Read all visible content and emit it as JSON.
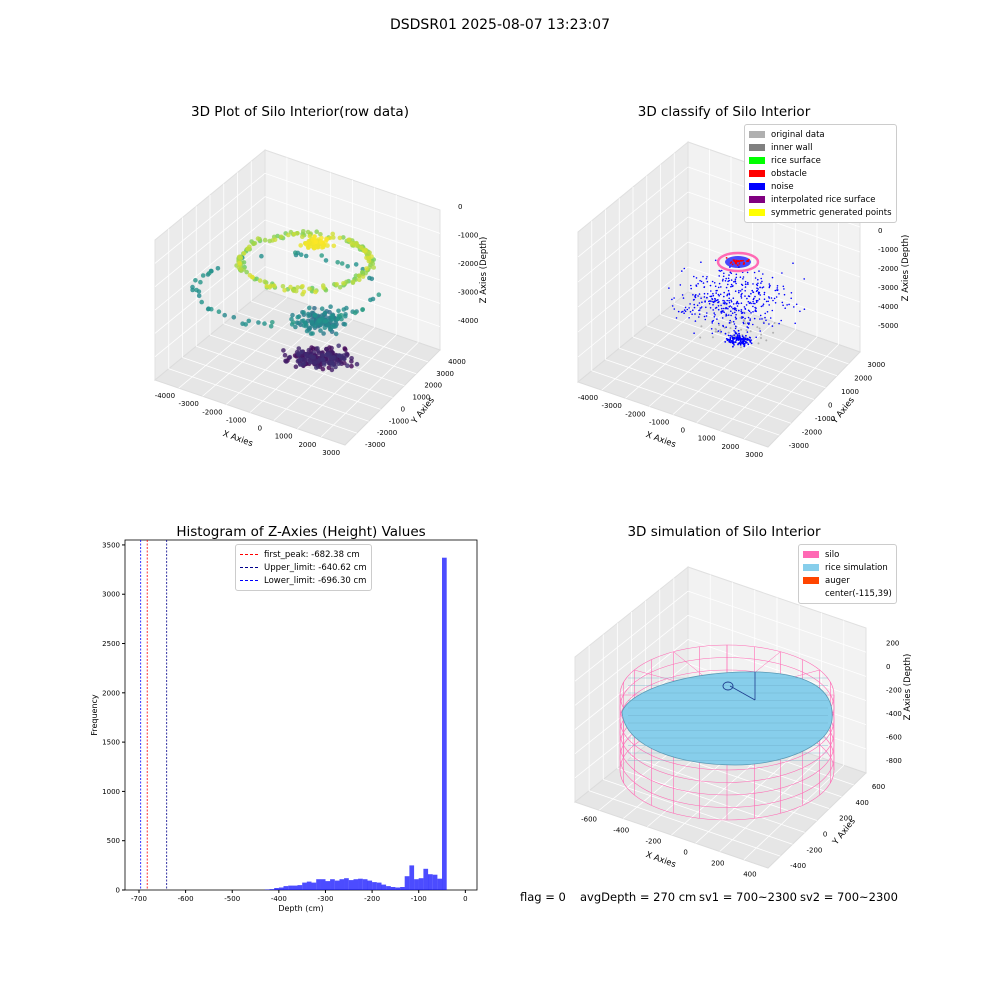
{
  "figure_title": "DSDSR01 2025-08-07 13:23:07",
  "footer": {
    "flag": "flag = 0",
    "avg_depth": "avgDepth = 270 cm",
    "sv1": "sv1 = 700~2300",
    "sv2": "sv2 = 700~2300"
  },
  "colors": {
    "original_data": "#b0b0b0",
    "inner_wall": "#808080",
    "rice_surface": "#00ff00",
    "obstacle": "#ff0000",
    "noise": "#0000ff",
    "interpolated": "#800080",
    "symmetric": "#ffff00",
    "silo": "#ff69b4",
    "rice_sim": "#87ceeb",
    "auger": "#ff4500",
    "hist_bar": "#0000ff"
  },
  "chart_data": [
    {
      "type": "scatter",
      "title": "3D Plot of Silo Interior(row data)",
      "xlabel": "X Axies",
      "ylabel": "Y Axies",
      "zlabel": "Z Axies (Depth)",
      "x_ticks": [
        "-4000",
        "-3000",
        "-2000",
        "-1000",
        "0",
        "1000",
        "2000",
        "3000"
      ],
      "y_ticks": [
        "-3000",
        "-2000",
        "-1000",
        "0",
        "1000",
        "2000",
        "3000",
        "4000"
      ],
      "z_ticks": [
        "-4000",
        "-3000",
        "-2000",
        "-1000",
        "0"
      ],
      "xlim": [
        -4000,
        3000
      ],
      "ylim": [
        -3000,
        4000
      ],
      "zlim": [
        -4500,
        0
      ],
      "colormap": "viridis",
      "grid": true
    },
    {
      "type": "scatter",
      "title": "3D classify of Silo Interior",
      "xlabel": "X Axies",
      "ylabel": "Y Axies",
      "zlabel": "Z Axies (Depth)",
      "x_ticks": [
        "-4000",
        "-3000",
        "-2000",
        "-1000",
        "0",
        "1000",
        "2000",
        "3000"
      ],
      "y_ticks": [
        "-3000",
        "-2000",
        "-1000",
        "0",
        "1000",
        "2000",
        "3000"
      ],
      "z_ticks": [
        "-5000",
        "-4000",
        "-3000",
        "-2000",
        "-1000",
        "0",
        "1000"
      ],
      "xlim": [
        -4000,
        3000
      ],
      "ylim": [
        -3000,
        3000
      ],
      "zlim": [
        -5500,
        1000
      ],
      "grid": true,
      "legend_position": "top-right",
      "legend": [
        "original data",
        "inner wall",
        "rice surface",
        "obstacle",
        "noise",
        "interpolated rice surface",
        "symmetric generated points"
      ]
    },
    {
      "type": "bar",
      "title": "Histogram of Z-Axies (Height) Values",
      "xlabel": "Depth (cm)",
      "ylabel": "Frequency",
      "xlim": [
        -730,
        25
      ],
      "ylim": [
        0,
        3550
      ],
      "x_ticks": [
        -700,
        -600,
        -500,
        -400,
        -300,
        -200,
        -100,
        0
      ],
      "y_ticks": [
        0,
        500,
        1000,
        1500,
        2000,
        2500,
        3000,
        3500
      ],
      "bin_width": 10,
      "bins": [
        {
          "x": -430,
          "v": 5
        },
        {
          "x": -420,
          "v": 8
        },
        {
          "x": -410,
          "v": 20
        },
        {
          "x": -400,
          "v": 25
        },
        {
          "x": -390,
          "v": 40
        },
        {
          "x": -380,
          "v": 45
        },
        {
          "x": -370,
          "v": 45
        },
        {
          "x": -360,
          "v": 50
        },
        {
          "x": -350,
          "v": 75
        },
        {
          "x": -340,
          "v": 85
        },
        {
          "x": -330,
          "v": 75
        },
        {
          "x": -320,
          "v": 110
        },
        {
          "x": -310,
          "v": 110
        },
        {
          "x": -300,
          "v": 90
        },
        {
          "x": -290,
          "v": 110
        },
        {
          "x": -280,
          "v": 95
        },
        {
          "x": -270,
          "v": 110
        },
        {
          "x": -260,
          "v": 120
        },
        {
          "x": -250,
          "v": 100
        },
        {
          "x": -240,
          "v": 110
        },
        {
          "x": -230,
          "v": 115
        },
        {
          "x": -220,
          "v": 110
        },
        {
          "x": -210,
          "v": 95
        },
        {
          "x": -200,
          "v": 80
        },
        {
          "x": -190,
          "v": 75
        },
        {
          "x": -180,
          "v": 55
        },
        {
          "x": -170,
          "v": 40
        },
        {
          "x": -160,
          "v": 30
        },
        {
          "x": -150,
          "v": 25
        },
        {
          "x": -140,
          "v": 30
        },
        {
          "x": -130,
          "v": 140
        },
        {
          "x": -120,
          "v": 250
        },
        {
          "x": -110,
          "v": 110
        },
        {
          "x": -100,
          "v": 120
        },
        {
          "x": -90,
          "v": 215
        },
        {
          "x": -80,
          "v": 160
        },
        {
          "x": -70,
          "v": 155
        },
        {
          "x": -60,
          "v": 115
        },
        {
          "x": -50,
          "v": 3370
        }
      ],
      "vlines": [
        {
          "label": "first_peak: -682.38 cm",
          "x": -682.38,
          "color": "#ff0000"
        },
        {
          "label": "Upper_limit: -640.62 cm",
          "x": -640.62,
          "color": "#00008b"
        },
        {
          "label": "Lower_limit: -696.30 cm",
          "x": -696.3,
          "color": "#0000ff"
        }
      ],
      "legend_position": "top-center"
    },
    {
      "type": "surface",
      "title": "3D simulation of Silo Interior",
      "xlabel": "X Axies",
      "ylabel": "Y Axies",
      "zlabel": "Z Axies (Depth)",
      "x_ticks": [
        "-600",
        "-400",
        "-200",
        "0",
        "200",
        "400"
      ],
      "y_ticks": [
        "-400",
        "-200",
        "0",
        "200",
        "400",
        "600"
      ],
      "z_ticks": [
        "-800",
        "-600",
        "-400",
        "-200",
        "0",
        "200"
      ],
      "xlim": [
        -700,
        450
      ],
      "ylim": [
        -500,
        650
      ],
      "zlim": [
        -850,
        300
      ],
      "grid": true,
      "legend_position": "top-right",
      "legend": [
        "silo",
        "rice simulation",
        "auger",
        "center(-115,39)"
      ]
    }
  ]
}
